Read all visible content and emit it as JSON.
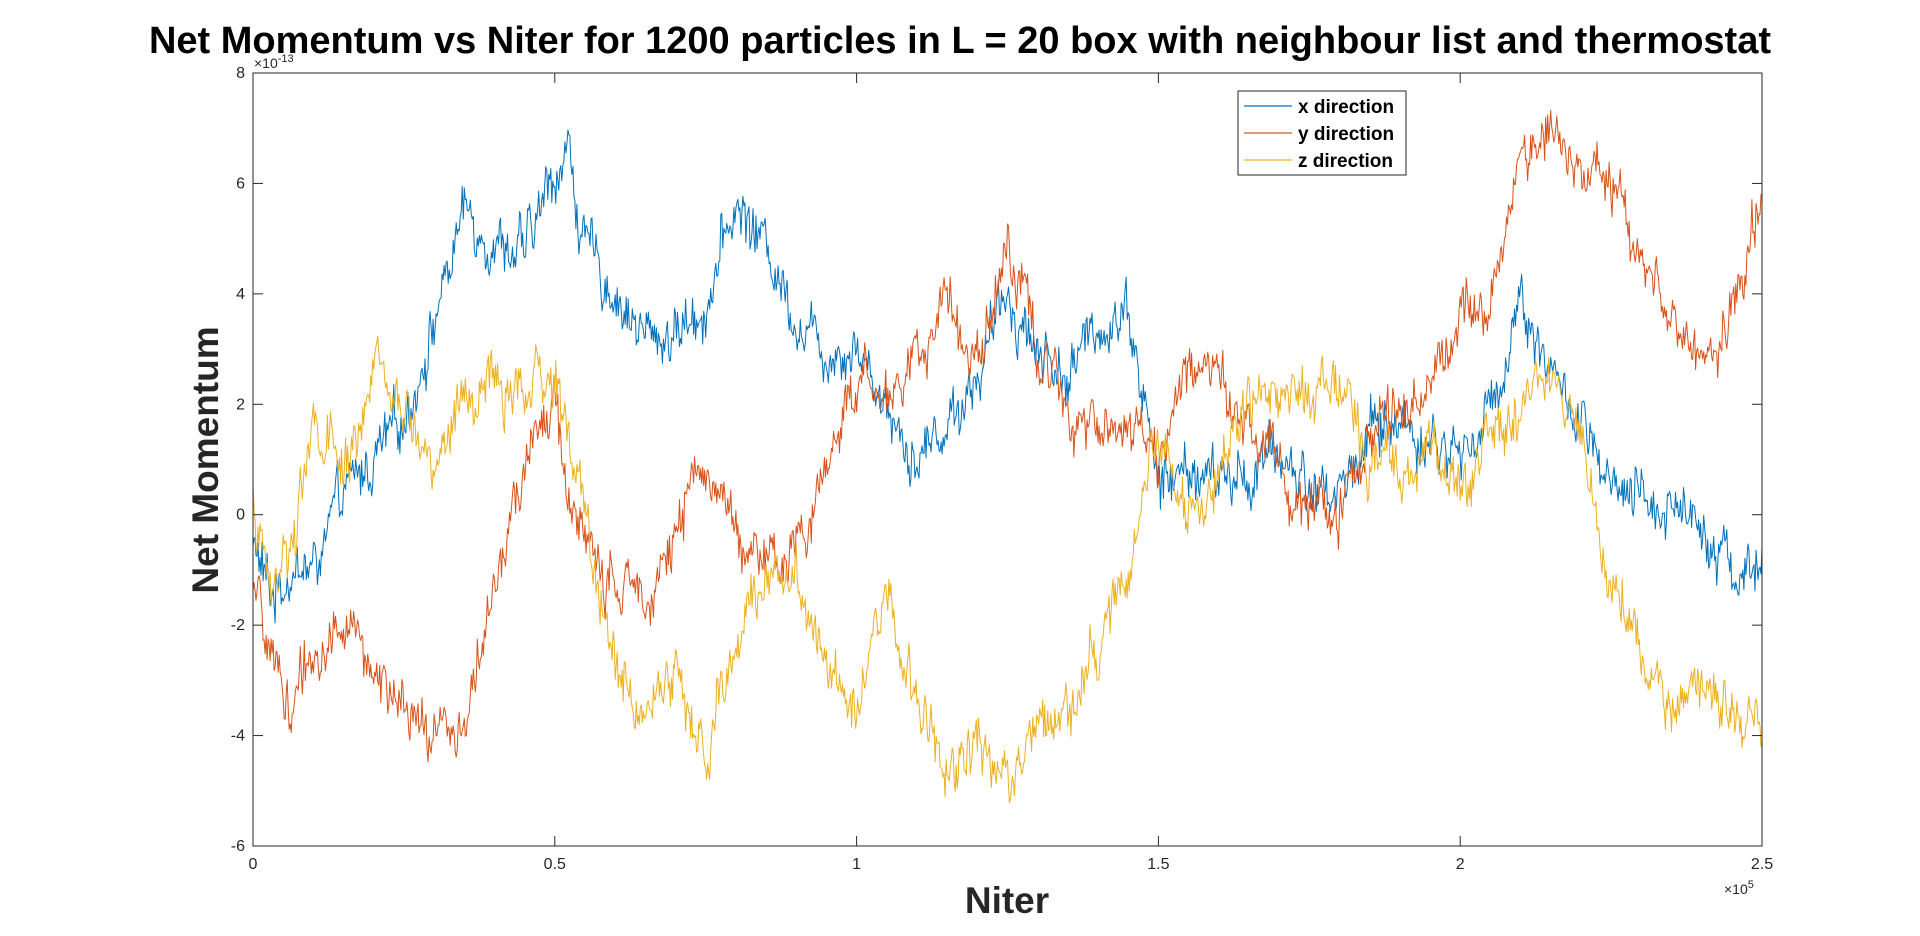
{
  "chart_data": {
    "type": "line",
    "title": "Net Momentum vs Niter for 1200 particles in L = 20 box with neighbour list and thermostat",
    "xlabel": "Niter",
    "ylabel": "Net Momentum",
    "x_exponent": "×10",
    "x_exponent_power": "5",
    "y_exponent": "×10",
    "y_exponent_power": "-13",
    "xlim": [
      0,
      2.5
    ],
    "ylim": [
      -6,
      8
    ],
    "x_ticks": [
      0,
      0.5,
      1,
      1.5,
      2,
      2.5
    ],
    "x_tick_labels": [
      "0",
      "0.5",
      "1",
      "1.5",
      "2",
      "2.5"
    ],
    "y_ticks": [
      -6,
      -4,
      -2,
      0,
      2,
      4,
      6,
      8
    ],
    "y_tick_labels": [
      "-6",
      "-4",
      "-2",
      "0",
      "2",
      "4",
      "6",
      "8"
    ],
    "grid": false,
    "legend_position": "top-right",
    "series": [
      {
        "name": "x direction",
        "color": "#0072BD",
        "x": [
          0,
          0.03,
          0.06,
          0.1,
          0.15,
          0.2,
          0.25,
          0.3,
          0.35,
          0.4,
          0.45,
          0.5,
          0.52,
          0.55,
          0.6,
          0.65,
          0.7,
          0.75,
          0.8,
          0.85,
          0.9,
          0.95,
          1.0,
          1.05,
          1.1,
          1.15,
          1.2,
          1.25,
          1.3,
          1.35,
          1.4,
          1.45,
          1.5,
          1.55,
          1.6,
          1.65,
          1.7,
          1.75,
          1.8,
          1.85,
          1.9,
          1.95,
          2.0,
          2.05,
          2.1,
          2.15,
          2.2,
          2.25,
          2.3,
          2.35,
          2.4,
          2.45,
          2.5
        ],
        "values": [
          -0.5,
          -1.5,
          -1.0,
          -1.0,
          0.3,
          1.0,
          1.7,
          3.5,
          5.5,
          5.0,
          4.7,
          6.2,
          6.7,
          4.8,
          4.0,
          3.2,
          3.3,
          3.8,
          5.6,
          4.9,
          3.6,
          3.0,
          3.1,
          2.0,
          1.0,
          1.7,
          2.5,
          4.0,
          3.0,
          2.5,
          3.4,
          3.8,
          0.5,
          0.8,
          0.6,
          0.7,
          1.1,
          0.5,
          0.4,
          1.5,
          1.7,
          1.3,
          1.1,
          1.8,
          4.0,
          2.6,
          1.6,
          0.3,
          0.2,
          0.2,
          0.0,
          -1.0,
          -1.0
        ]
      },
      {
        "name": "y direction",
        "color": "#D95319",
        "x": [
          0,
          0.03,
          0.06,
          0.1,
          0.15,
          0.2,
          0.25,
          0.3,
          0.35,
          0.4,
          0.45,
          0.5,
          0.52,
          0.55,
          0.6,
          0.65,
          0.7,
          0.75,
          0.8,
          0.85,
          0.9,
          0.95,
          1.0,
          1.05,
          1.1,
          1.15,
          1.2,
          1.25,
          1.3,
          1.35,
          1.4,
          1.45,
          1.5,
          1.55,
          1.6,
          1.65,
          1.7,
          1.75,
          1.8,
          1.85,
          1.9,
          1.95,
          2.0,
          2.05,
          2.1,
          2.15,
          2.2,
          2.25,
          2.3,
          2.35,
          2.4,
          2.45,
          2.5
        ],
        "values": [
          -1.5,
          -2.5,
          -3.5,
          -2.5,
          -2.0,
          -2.7,
          -3.8,
          -4.0,
          -3.7,
          -1.5,
          1.0,
          2.0,
          0.5,
          -0.5,
          -1.5,
          -1.2,
          -0.5,
          1.0,
          -0.2,
          -1.0,
          -0.8,
          1.0,
          2.5,
          2.0,
          3.0,
          3.8,
          3.0,
          4.8,
          3.0,
          2.0,
          1.7,
          1.7,
          1.0,
          2.5,
          3.0,
          1.5,
          1.0,
          0.0,
          0.0,
          1.5,
          2.0,
          2.5,
          3.5,
          4.2,
          6.2,
          7.3,
          6.0,
          6.1,
          4.8,
          3.5,
          2.5,
          4.0,
          5.5
        ]
      },
      {
        "name": "z direction",
        "color": "#EDB120",
        "x": [
          0,
          0.03,
          0.06,
          0.1,
          0.15,
          0.2,
          0.25,
          0.3,
          0.35,
          0.4,
          0.45,
          0.5,
          0.52,
          0.55,
          0.6,
          0.65,
          0.7,
          0.75,
          0.8,
          0.85,
          0.9,
          0.95,
          1.0,
          1.05,
          1.1,
          1.15,
          1.2,
          1.25,
          1.3,
          1.35,
          1.4,
          1.45,
          1.5,
          1.55,
          1.6,
          1.65,
          1.7,
          1.75,
          1.8,
          1.85,
          1.9,
          1.95,
          2.0,
          2.05,
          2.1,
          2.15,
          2.2,
          2.25,
          2.3,
          2.35,
          2.4,
          2.45,
          2.5
        ],
        "values": [
          0.2,
          -1.5,
          -0.5,
          1.5,
          0.8,
          2.5,
          1.8,
          1.0,
          2.0,
          2.3,
          2.1,
          2.5,
          1.5,
          0.0,
          -2.8,
          -3.5,
          -2.8,
          -4.5,
          -2.3,
          -1.0,
          -1.0,
          -2.5,
          -3.3,
          -1.5,
          -3.5,
          -4.5,
          -4.0,
          -4.8,
          -3.8,
          -3.3,
          -2.5,
          -1.0,
          1.5,
          0.0,
          0.8,
          2.0,
          2.3,
          2.0,
          2.5,
          1.0,
          1.0,
          1.3,
          0.5,
          1.5,
          2.0,
          2.3,
          1.5,
          -1.0,
          -2.8,
          -3.5,
          -3.0,
          -3.5,
          -4.0
        ]
      }
    ]
  }
}
